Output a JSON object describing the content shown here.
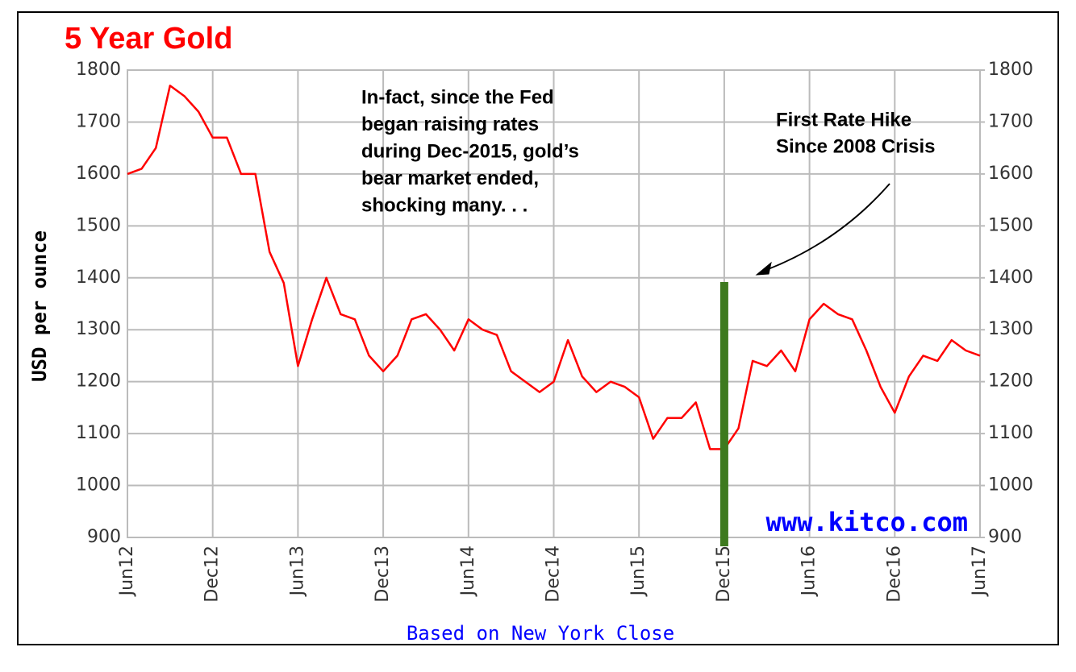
{
  "chart_data": {
    "type": "line",
    "title": "5 Year Gold",
    "y_label": "USD per ounce",
    "x_note": "Based on New York Close",
    "watermark": "www.kitco.com",
    "categories": [
      "Jun12",
      null,
      null,
      null,
      null,
      null,
      "Dec12",
      null,
      null,
      null,
      null,
      null,
      "Jun13",
      null,
      null,
      null,
      null,
      null,
      "Dec13",
      null,
      null,
      null,
      null,
      null,
      "Jun14",
      null,
      null,
      null,
      null,
      null,
      "Dec14",
      null,
      null,
      null,
      null,
      null,
      "Jun15",
      null,
      null,
      null,
      null,
      null,
      "Dec15",
      null,
      null,
      null,
      null,
      null,
      "Jun16",
      null,
      null,
      null,
      null,
      null,
      "Dec16",
      null,
      null,
      null,
      null,
      null,
      "Jun17"
    ],
    "values": [
      1600,
      1610,
      1650,
      1770,
      1750,
      1720,
      1670,
      1670,
      1600,
      1600,
      1450,
      1390,
      1230,
      1320,
      1400,
      1330,
      1320,
      1250,
      1220,
      1250,
      1320,
      1330,
      1300,
      1260,
      1320,
      1300,
      1290,
      1220,
      1200,
      1180,
      1200,
      1280,
      1210,
      1180,
      1200,
      1190,
      1170,
      1090,
      1130,
      1130,
      1160,
      1070,
      1070,
      1110,
      1240,
      1230,
      1260,
      1220,
      1320,
      1350,
      1330,
      1320,
      1260,
      1190,
      1140,
      1210,
      1250,
      1240,
      1280,
      1260,
      1250
    ],
    "color": "#ff0000",
    "ylim": [
      900,
      1800
    ],
    "yticks": [
      900,
      1000,
      1100,
      1200,
      1300,
      1400,
      1500,
      1600,
      1700,
      1800
    ],
    "y2lim": [
      900,
      1800
    ],
    "y2ticks": [
      900,
      1000,
      1100,
      1200,
      1300,
      1400,
      1500,
      1600,
      1700,
      1800
    ],
    "grid": true,
    "annotations": [
      {
        "lines": [
          "In-fact, since the Fed",
          "began raising rates",
          "during Dec-2015, gold’s",
          "bear market ended,",
          "shocking many. . ."
        ]
      },
      {
        "lines": [
          "First Rate Hike",
          "Since 2008 Crisis"
        ]
      }
    ]
  }
}
